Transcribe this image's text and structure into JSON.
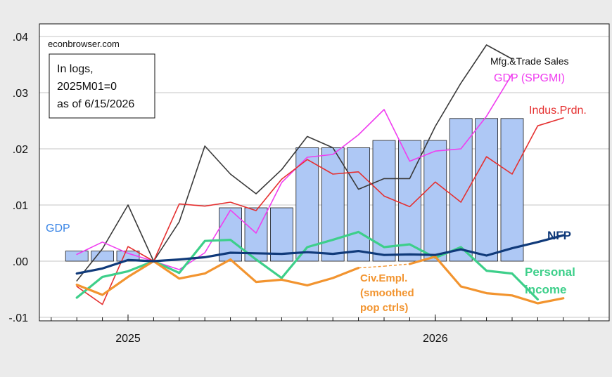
{
  "chart_data": {
    "type": "line",
    "watermark": "econbrowser.com",
    "note_lines": [
      "In logs,",
      "2025M01=0",
      "as of 6/15/2026"
    ],
    "y_ticks": [
      ".04",
      ".03",
      ".02",
      ".01",
      ".00",
      "-.01"
    ],
    "y_tick_values": [
      0.04,
      0.03,
      0.02,
      0.01,
      0.0,
      -0.01
    ],
    "ylim": [
      -0.01,
      0.04
    ],
    "x_tick_labels": [
      {
        "label": "2025",
        "month": 1
      },
      {
        "label": "2026",
        "month": 13
      }
    ],
    "xlim_months": [
      -2,
      22
    ],
    "grid": true,
    "colors": {
      "background": "#ebebeb",
      "plot_bg": "#ffffff",
      "gdp_bar_fill": "#aec8f5",
      "gdp_bar_stroke": "#1c1c1c",
      "nfp": "#103a7a",
      "personal_income": "#3dcf8a",
      "civ_empl": "#f2942f",
      "indus_prdn": "#e53030",
      "gdp_spgmi": "#f03ef0",
      "mfg_trade_sales": "#3a3a3a",
      "gdp_label": "#3b86e6"
    },
    "bars": {
      "name": "GDP",
      "label": "GDP",
      "groups": [
        {
          "months": [
            -1,
            0,
            1
          ],
          "value": 0.0018
        },
        {
          "months": [
            5,
            6,
            7
          ],
          "value": 0.0095
        },
        {
          "months": [
            8,
            9,
            10
          ],
          "value": 0.0202
        },
        {
          "months": [
            11,
            12,
            13
          ],
          "value": 0.0215
        },
        {
          "months": [
            14,
            15,
            16
          ],
          "value": 0.0254
        }
      ]
    },
    "series": [
      {
        "key": "mfg_trade_sales",
        "label": "Mfg.&Trade Sales",
        "x": [
          -1,
          0,
          1,
          2,
          3,
          4,
          5,
          6,
          7,
          8,
          9,
          10,
          11,
          12,
          13,
          14,
          15,
          16
        ],
        "values": [
          -0.0035,
          0.0022,
          0.01,
          0.0,
          0.007,
          0.0205,
          0.0155,
          0.012,
          0.0163,
          0.0222,
          0.0202,
          0.0128,
          0.0147,
          0.0147,
          0.024,
          0.0317,
          0.0385,
          0.036
        ]
      },
      {
        "key": "gdp_spgmi",
        "label": "GDP (SPGMI)",
        "x": [
          -1,
          0,
          1,
          2,
          3,
          4,
          5,
          6,
          7,
          8,
          9,
          10,
          11,
          12,
          13,
          14,
          15,
          16
        ],
        "values": [
          0.0012,
          0.0034,
          0.0014,
          0.0,
          -0.0015,
          0.0015,
          0.0091,
          0.005,
          0.014,
          0.0185,
          0.019,
          0.0225,
          0.027,
          0.0178,
          0.0196,
          0.02,
          0.0258,
          0.0333
        ]
      },
      {
        "key": "indus_prdn",
        "label": "Indus.Prdn.",
        "x": [
          -1,
          0,
          1,
          2,
          3,
          4,
          5,
          6,
          7,
          8,
          9,
          10,
          11,
          12,
          13,
          14,
          15,
          16,
          17,
          18
        ],
        "values": [
          -0.0045,
          -0.0077,
          0.0026,
          0.0,
          0.0102,
          0.0098,
          0.0105,
          0.009,
          0.0146,
          0.0181,
          0.0155,
          0.0159,
          0.0116,
          0.0097,
          0.0141,
          0.0105,
          0.0186,
          0.0155,
          0.0241,
          0.0255
        ]
      },
      {
        "key": "personal_income",
        "label": "Personal income",
        "label_lines": [
          "Personal",
          "income"
        ],
        "x": [
          -1,
          0,
          1,
          2,
          3,
          4,
          5,
          6,
          7,
          8,
          9,
          10,
          11,
          12,
          13,
          14,
          15,
          16,
          17
        ],
        "values": [
          -0.0065,
          -0.0028,
          -0.0018,
          0.0,
          -0.0021,
          0.0036,
          0.0038,
          0.0003,
          -0.003,
          0.0025,
          0.0038,
          0.0052,
          0.0025,
          0.003,
          0.0006,
          0.0025,
          -0.0017,
          -0.0022,
          -0.0068
        ]
      },
      {
        "key": "civ_empl",
        "label": "Civ.Empl. (smoothed pop ctrls)",
        "label_lines": [
          "Civ.Empl.",
          "(smoothed",
          "pop ctrls)"
        ],
        "x": [
          -1,
          0,
          1,
          2,
          3,
          4,
          5,
          6,
          7,
          8,
          9,
          10,
          11,
          12,
          13,
          14,
          15,
          16,
          17,
          18
        ],
        "values": [
          -0.0042,
          -0.006,
          -0.0028,
          0.0,
          -0.0031,
          -0.0022,
          0.0003,
          -0.0037,
          -0.0033,
          -0.0043,
          -0.003,
          -0.0012,
          -0.0009,
          -0.0005,
          0.0008,
          -0.0045,
          -0.0057,
          -0.0061,
          -0.0075,
          -0.0066
        ],
        "dashed_segments": [
          [
            10,
            12
          ]
        ]
      },
      {
        "key": "nfp",
        "label": "NFP",
        "x": [
          -1,
          0,
          1,
          2,
          3,
          4,
          5,
          6,
          7,
          8,
          9,
          10,
          11,
          12,
          13,
          14,
          15,
          16,
          17,
          18
        ],
        "values": [
          -0.0022,
          -0.0013,
          0.0002,
          0.0,
          0.0003,
          0.0007,
          0.0015,
          0.0014,
          0.0013,
          0.0016,
          0.0013,
          0.0018,
          0.0011,
          0.0012,
          0.0011,
          0.0021,
          0.001,
          0.0023,
          0.0034,
          0.0046
        ]
      }
    ]
  }
}
